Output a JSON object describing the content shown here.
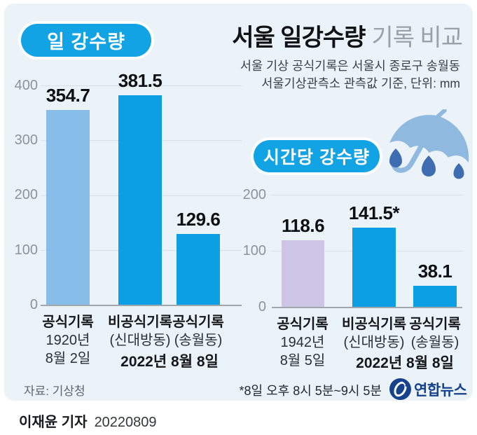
{
  "header": {
    "title_bold": "서울 일강수량",
    "title_light": "기록 비교",
    "subtitle_line1": "서울 기상 공식기록은 서울시 종로구 송월동",
    "subtitle_line2": "서울기상관측소 관측값 기준, 단위: mm"
  },
  "chart_data": [
    {
      "type": "bar",
      "title": "일 강수량",
      "unit": "mm",
      "categories": [
        "공식기록 1920년 8월 2일",
        "비공식기록 (신대방동) 2022년 8월 8일",
        "공식기록 (송월동) 2022년 8월 8일"
      ],
      "values": [
        354.7,
        381.5,
        129.6
      ],
      "value_labels": [
        "354.7",
        "381.5",
        "129.6"
      ],
      "bar_color_keys": [
        "bar_light_blue",
        "bar_blue",
        "bar_blue"
      ],
      "ylim": [
        0,
        400
      ],
      "ytick_labels": [
        "400",
        "300",
        "200",
        "100",
        "0"
      ],
      "grid": "on",
      "legend": "none",
      "xlabels": [
        {
          "lines": [
            "공식기록",
            "1920년",
            "8월 2일"
          ]
        },
        {
          "lines": [
            "비공식기록",
            "(신대방동)"
          ]
        },
        {
          "lines": [
            "공식기록",
            "(송월동)"
          ]
        }
      ],
      "shared_date": "2022년 8월 8일"
    },
    {
      "type": "bar",
      "title": "시간당 강수량",
      "unit": "mm",
      "categories": [
        "공식기록 1942년 8월 5일",
        "비공식기록 (신대방동) 2022년 8월 8일",
        "공식기록 (송월동) 2022년 8월 8일"
      ],
      "values": [
        118.6,
        141.5,
        38.1
      ],
      "value_labels": [
        "118.6",
        "141.5*",
        "38.1"
      ],
      "bar_color_keys": [
        "bar_lavender",
        "bar_blue",
        "bar_blue"
      ],
      "ylim": [
        0,
        200
      ],
      "ytick_labels": [
        "200",
        "100",
        "0"
      ],
      "grid": "on",
      "legend": "none",
      "xlabels": [
        {
          "lines": [
            "공식기록",
            "1942년",
            "8월 5일"
          ]
        },
        {
          "lines": [
            "비공식기록",
            "(신대방동)"
          ]
        },
        {
          "lines": [
            "공식기록",
            "(송월동)"
          ]
        }
      ],
      "shared_date": "2022년 8월 8일"
    }
  ],
  "footer": {
    "source": "자료: 기상청",
    "note": "*8일 오후 8시 5분~9시 5분",
    "logo_text": "연합뉴스"
  },
  "byline": {
    "reporter": "이재윤 기자",
    "date": "20220809"
  },
  "colors": {
    "bg": "#EBF2F8",
    "accent_blue": "#12A3E4",
    "bar_light_blue": "#87BEE9",
    "bar_blue": "#0C9FE3",
    "bar_lavender": "#CDC5E6",
    "navy": "#16418D",
    "grid": "#D8DFE6",
    "axis": "#9FA6AC",
    "title_muted": "#9BA1A8",
    "icon_umbrella": "#8FB9DF",
    "icon_drop": "#3E6DB2"
  }
}
